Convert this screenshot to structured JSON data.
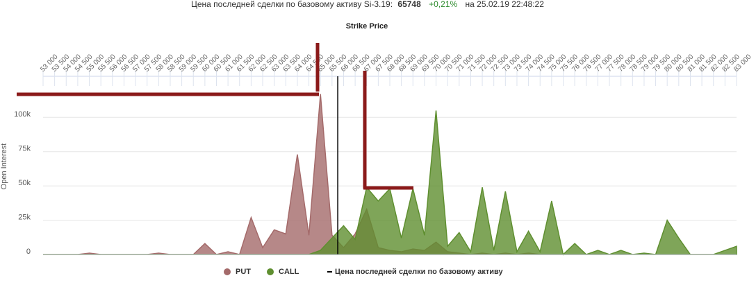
{
  "chart_data": {
    "type": "area",
    "header_prefix": "Цена последней сделки по базовому активу Si-3.19:",
    "current_price": 65748,
    "change": "+0,21%",
    "timestamp": "на 25.02.19 22:48:22",
    "title": "Strike Price",
    "y_label": "Open Interest",
    "categories": [
      "53 000",
      "53 500",
      "54 000",
      "54 500",
      "55 000",
      "55 500",
      "56 000",
      "56 500",
      "57 000",
      "57 500",
      "58 000",
      "58 500",
      "59 000",
      "59 500",
      "60 000",
      "60 500",
      "61 000",
      "61 500",
      "62 000",
      "62 500",
      "63 000",
      "63 500",
      "64 000",
      "64 500",
      "65 000",
      "65 500",
      "66 000",
      "66 500",
      "67 000",
      "67 500",
      "68 000",
      "68 500",
      "69 000",
      "69 500",
      "70 000",
      "70 500",
      "71 000",
      "71 500",
      "72 000",
      "72 500",
      "73 000",
      "73 500",
      "74 000",
      "74 500",
      "75 000",
      "75 500",
      "76 000",
      "76 500",
      "77 000",
      "77 500",
      "78 000",
      "78 500",
      "79 000",
      "79 500",
      "80 000",
      "80 500",
      "81 000",
      "81 500",
      "82 000",
      "82 500",
      "83 000"
    ],
    "xlim": [
      53000,
      83000
    ],
    "series": [
      {
        "name": "PUT",
        "color": "#a46a6a",
        "values": [
          0,
          0,
          0,
          0,
          1000,
          0,
          0,
          0,
          0,
          0,
          1000,
          0,
          0,
          0,
          8000,
          0,
          2000,
          0,
          27000,
          5000,
          18000,
          15000,
          73000,
          14000,
          117000,
          14000,
          5000,
          15000,
          33000,
          5000,
          3000,
          2000,
          4000,
          3000,
          9000,
          2000,
          1000,
          0,
          1000,
          0,
          1000,
          0,
          1000,
          0,
          0,
          0,
          0,
          0,
          0,
          0,
          0,
          0,
          0,
          0,
          0,
          0,
          0,
          0,
          0,
          0,
          0
        ]
      },
      {
        "name": "CALL",
        "color": "#5f8f30",
        "values": [
          0,
          0,
          0,
          0,
          0,
          0,
          0,
          0,
          0,
          0,
          0,
          0,
          0,
          0,
          0,
          0,
          0,
          0,
          0,
          0,
          0,
          0,
          0,
          0,
          3000,
          12000,
          21000,
          11000,
          49000,
          39000,
          48000,
          12000,
          48000,
          14000,
          105000,
          6000,
          16000,
          2000,
          49000,
          3000,
          46000,
          2000,
          17000,
          2000,
          39000,
          0,
          8000,
          0,
          3000,
          0,
          3000,
          0,
          1000,
          0,
          25000,
          12000,
          0,
          0,
          0,
          3000,
          6000
        ]
      }
    ],
    "price_legend": "Цена последней сделки по базовому активу",
    "ylim": [
      0,
      130000
    ],
    "yticks": [
      0,
      {
        "value": 25000,
        "label": "25k"
      },
      {
        "value": 50000,
        "label": "50k"
      },
      {
        "value": 75000,
        "label": "75k"
      },
      {
        "value": 100000,
        "label": "100k"
      }
    ],
    "grid": true
  }
}
